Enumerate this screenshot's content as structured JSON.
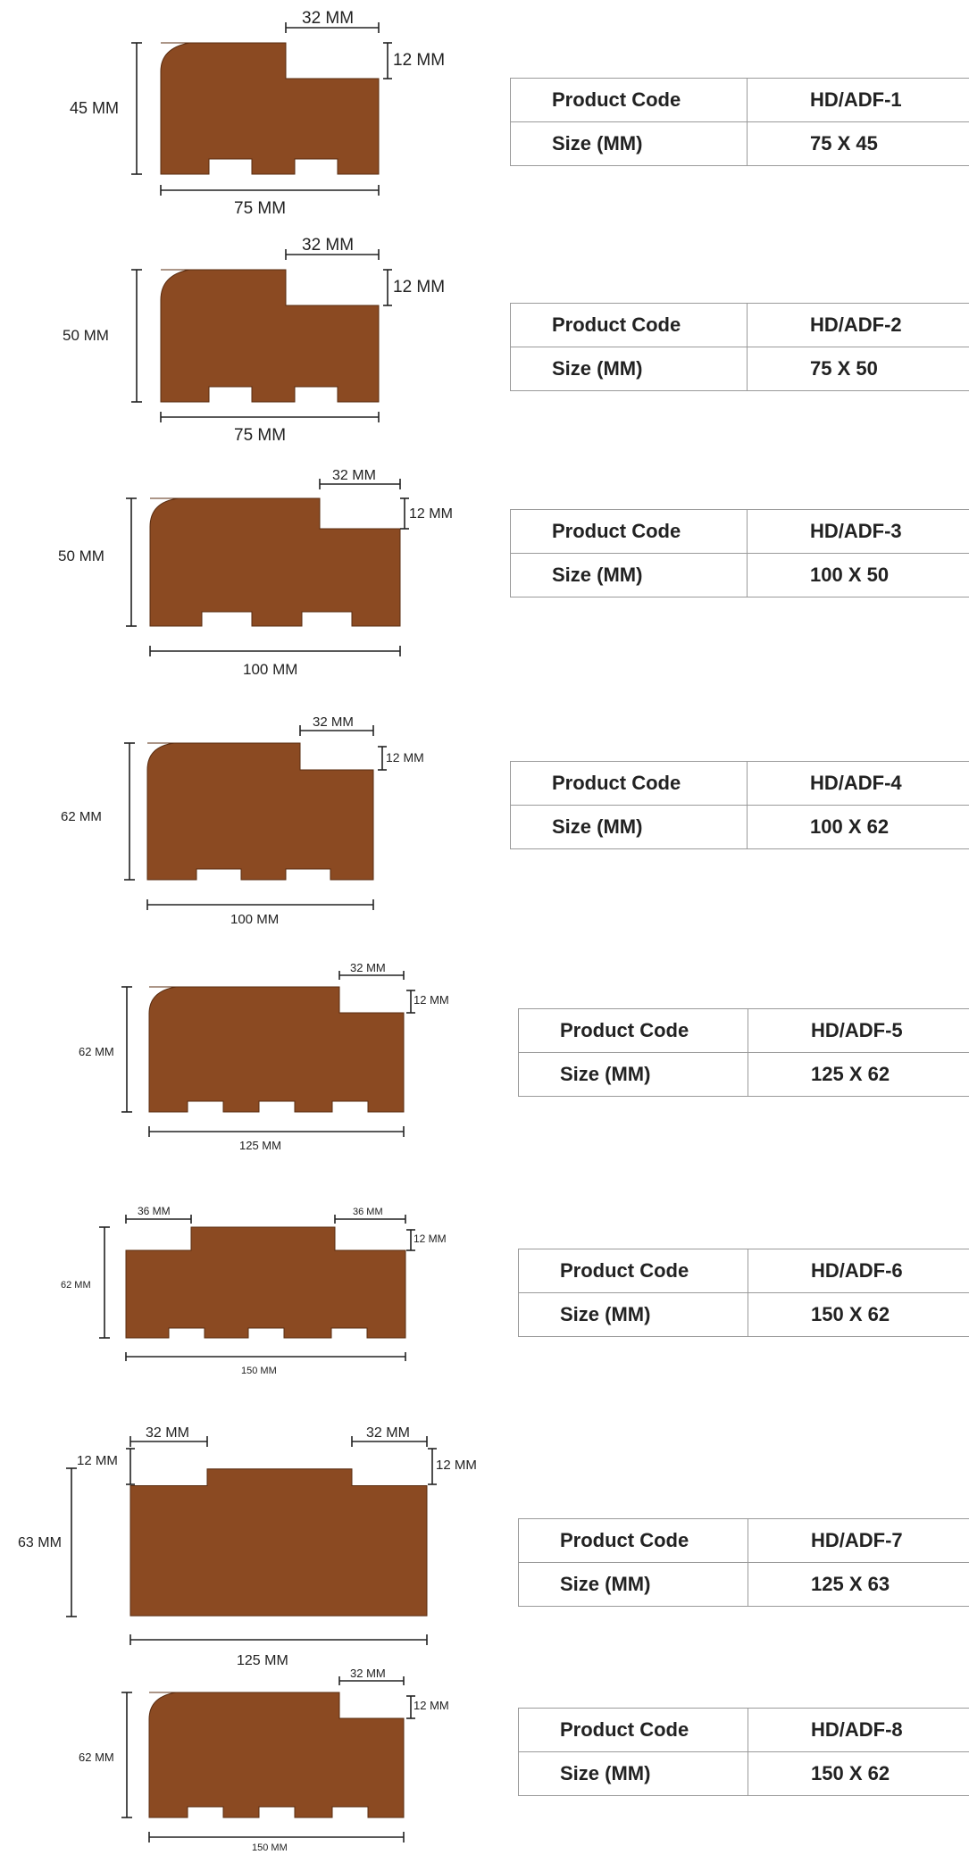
{
  "products": [
    {
      "code_label": "Product Code",
      "size_label": "Size (MM)",
      "code": "HD/ADF-1",
      "size": "75 X 45",
      "dims": {
        "height": "45 MM",
        "width": "75 MM",
        "step_w": "32 MM",
        "step_h": "12 MM"
      }
    },
    {
      "code_label": "Product Code",
      "size_label": "Size (MM)",
      "code": "HD/ADF-2",
      "size": "75 X 50",
      "dims": {
        "height": "50 MM",
        "width": "75 MM",
        "step_w": "32 MM",
        "step_h": "12 MM"
      }
    },
    {
      "code_label": "Product Code",
      "size_label": "Size (MM)",
      "code": "HD/ADF-3",
      "size": "100 X 50",
      "dims": {
        "height": "50 MM",
        "width": "100 MM",
        "step_w": "32 MM",
        "step_h": "12 MM"
      }
    },
    {
      "code_label": "Product Code",
      "size_label": "Size (MM)",
      "code": "HD/ADF-4",
      "size": "100 X 62",
      "dims": {
        "height": "62 MM",
        "width": "100 MM",
        "step_w": "32 MM",
        "step_h": "12 MM"
      }
    },
    {
      "code_label": "Product Code",
      "size_label": "Size (MM)",
      "code": "HD/ADF-5",
      "size": "125 X 62",
      "dims": {
        "height": "62 MM",
        "width": "125 MM",
        "step_w": "32 MM",
        "step_h": "12 MM"
      }
    },
    {
      "code_label": "Product Code",
      "size_label": "Size (MM)",
      "code": "HD/ADF-6",
      "size": "150 X 62",
      "dims": {
        "height": "62 MM",
        "width": "150 MM",
        "step_left": "36 MM",
        "step_right": "36 MM",
        "step_h": "12 MM"
      }
    },
    {
      "code_label": "Product Code",
      "size_label": "Size (MM)",
      "code": "HD/ADF-7",
      "size": "125 X 63",
      "dims": {
        "height": "63 MM",
        "width": "125 MM",
        "step_left": "32 MM",
        "step_right": "32 MM",
        "step_h_left": "12 MM",
        "step_h_right": "12 MM"
      }
    },
    {
      "code_label": "Product Code",
      "size_label": "Size (MM)",
      "code": "HD/ADF-8",
      "size": "150 X 62",
      "dims": {
        "height": "62 MM",
        "width": "150 MM",
        "step_w": "32 MM",
        "step_h": "12 MM"
      }
    }
  ]
}
